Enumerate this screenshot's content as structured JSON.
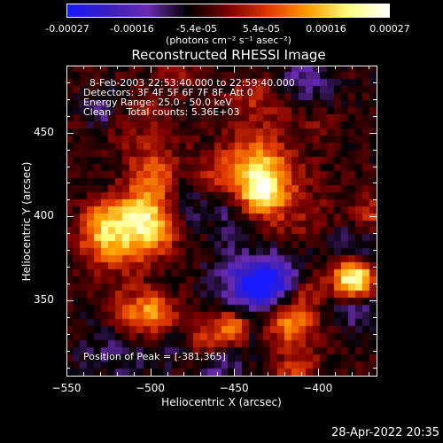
{
  "colorbar": {
    "tick_labels": [
      "-0.00027",
      "-0.00016",
      "-5.4e-05",
      "5.4e-05",
      "0.00016",
      "0.00027"
    ],
    "unit_label": "(photons cm⁻² s⁻¹ asec⁻²)",
    "colors": [
      "#1a1aff",
      "#3a1fbf",
      "#6a2bb0",
      "#000000",
      "#7a0000",
      "#e03a00",
      "#ff9d00",
      "#ffff80",
      "#ffffff"
    ]
  },
  "chart_data": {
    "type": "heatmap",
    "title": "Reconstructed RHESSI Image",
    "xlabel": "Heliocentric X (arcsec)",
    "ylabel": "Heliocentric Y (arcsec)",
    "xlim": [
      -550,
      -365
    ],
    "ylim": [
      305,
      490
    ],
    "x_ticks": [
      "−550",
      "−500",
      "−450",
      "−400"
    ],
    "x_tick_values": [
      -550,
      -500,
      -450,
      -400
    ],
    "y_ticks": [
      "350",
      "400",
      "450"
    ],
    "y_tick_values": [
      350,
      400,
      450
    ],
    "grid": false,
    "annotations": {
      "time": "8-Feb-2003 22:53:40.000 to 22:59:40.000",
      "detectors": "Detectors: 3F 4F 5F 6F 7F 8F, Att 0",
      "energy": "Energy Range: 25.0 - 50.0 keV",
      "clean": "Clean     Total counts: 5.36E+03",
      "peak": "Position of Peak = [-381,365]"
    },
    "peak_position": [
      -381,
      365
    ]
  },
  "footer": {
    "timestamp": "28-Apr-2022 20:35"
  }
}
